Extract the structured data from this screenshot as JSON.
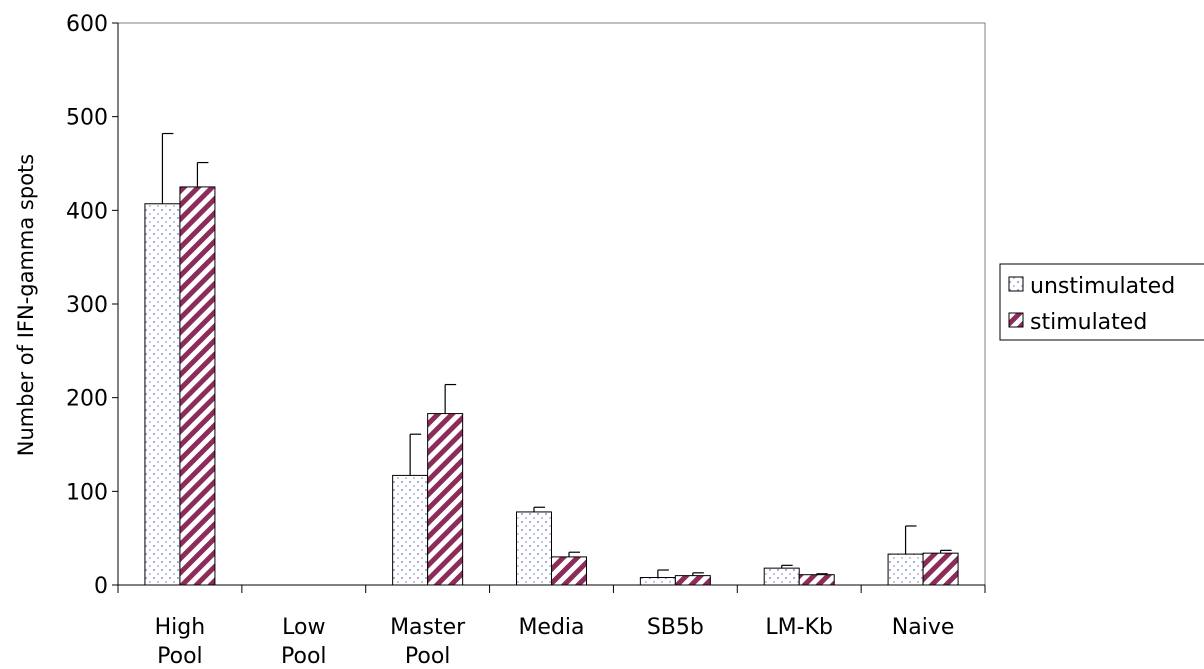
{
  "chart_data": {
    "type": "bar",
    "title": "",
    "xlabel": "",
    "ylabel": "Number of IFN-gamma spots",
    "ylim": [
      0,
      600
    ],
    "yticks": [
      0,
      100,
      200,
      300,
      400,
      500,
      600
    ],
    "categories": [
      [
        "High",
        "Pool"
      ],
      [
        "Low",
        "Pool"
      ],
      [
        "Master",
        "Pool"
      ],
      [
        "Media"
      ],
      [
        "SB5b"
      ],
      [
        "LM-Kb"
      ],
      [
        "Naive"
      ]
    ],
    "series": [
      {
        "name": "unstimulated",
        "pattern": "dotted",
        "color": "#9aa7d6",
        "values": [
          407,
          0,
          117,
          78,
          8,
          18,
          33
        ],
        "errors": [
          75,
          0,
          44,
          5,
          8,
          3,
          30
        ]
      },
      {
        "name": "stimulated",
        "pattern": "diagonal-stripes",
        "color": "#8b2c5a",
        "values": [
          425,
          0,
          183,
          30,
          10,
          11,
          34
        ],
        "errors": [
          26,
          0,
          31,
          5,
          3,
          1,
          3
        ]
      }
    ],
    "grid": false,
    "legend_position": "right"
  }
}
